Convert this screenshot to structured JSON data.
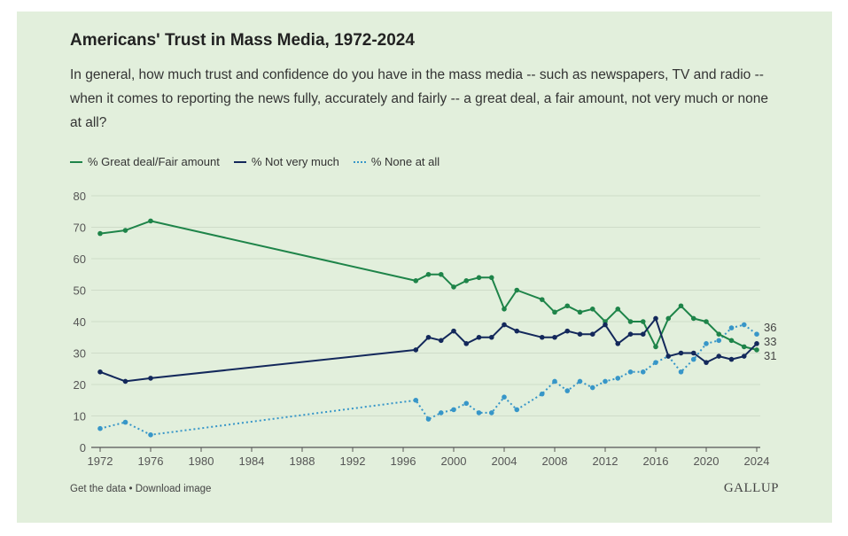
{
  "colors": {
    "great_fair": "#1e8449",
    "not_very": "#13285b",
    "none": "#3796c8",
    "grid": "#cfdcc9",
    "axis": "#555555"
  },
  "header": {
    "title": "Americans' Trust in Mass Media, 1972-2024",
    "question": "In general, how much trust and confidence do you have in the mass media -- such as newspapers, TV and radio -- when it comes to reporting the news fully, accurately and fairly -- a great deal, a fair amount, not very much or none at all?"
  },
  "footer": {
    "get_data": "Get the data",
    "separator": "•",
    "download": "Download image",
    "brand": "GALLUP"
  },
  "chart_data": {
    "type": "line",
    "title": "Americans' Trust in Mass Media, 1972-2024",
    "xlabel": "",
    "ylabel": "",
    "xlim": [
      1972,
      2024
    ],
    "ylim": [
      0,
      80
    ],
    "x_ticks": [
      1972,
      1976,
      1980,
      1984,
      1988,
      1992,
      1996,
      2000,
      2004,
      2008,
      2012,
      2016,
      2020,
      2024
    ],
    "y_ticks": [
      0,
      10,
      20,
      30,
      40,
      50,
      60,
      70,
      80
    ],
    "grid": true,
    "legend_position": "top-left",
    "series": [
      {
        "name": "% Great deal/Fair amount",
        "style": "solid",
        "end_label": "31",
        "x": [
          1972,
          1974,
          1976,
          1997,
          1998,
          1999,
          2000,
          2001,
          2002,
          2003,
          2004,
          2005,
          2007,
          2008,
          2009,
          2010,
          2011,
          2012,
          2013,
          2014,
          2015,
          2016,
          2017,
          2018,
          2019,
          2020,
          2021,
          2022,
          2023,
          2024
        ],
        "values": [
          68,
          69,
          72,
          53,
          55,
          55,
          51,
          53,
          54,
          54,
          44,
          50,
          47,
          43,
          45,
          43,
          44,
          40,
          44,
          40,
          40,
          32,
          41,
          45,
          41,
          40,
          36,
          34,
          32,
          31
        ]
      },
      {
        "name": "% Not very much",
        "style": "solid",
        "end_label": "33",
        "x": [
          1972,
          1974,
          1976,
          1997,
          1998,
          1999,
          2000,
          2001,
          2002,
          2003,
          2004,
          2005,
          2007,
          2008,
          2009,
          2010,
          2011,
          2012,
          2013,
          2014,
          2015,
          2016,
          2017,
          2018,
          2019,
          2020,
          2021,
          2022,
          2023,
          2024
        ],
        "values": [
          24,
          21,
          22,
          31,
          35,
          34,
          37,
          33,
          35,
          35,
          39,
          37,
          35,
          35,
          37,
          36,
          36,
          39,
          33,
          36,
          36,
          41,
          29,
          30,
          30,
          27,
          29,
          28,
          29,
          33
        ]
      },
      {
        "name": "% None at all",
        "style": "dotted",
        "end_label": "36",
        "x": [
          1972,
          1974,
          1976,
          1997,
          1998,
          1999,
          2000,
          2001,
          2002,
          2003,
          2004,
          2005,
          2007,
          2008,
          2009,
          2010,
          2011,
          2012,
          2013,
          2014,
          2015,
          2016,
          2017,
          2018,
          2019,
          2020,
          2021,
          2022,
          2023,
          2024
        ],
        "values": [
          6,
          8,
          4,
          15,
          9,
          11,
          12,
          14,
          11,
          11,
          16,
          12,
          17,
          21,
          18,
          21,
          19,
          21,
          22,
          24,
          24,
          27,
          29,
          24,
          28,
          33,
          34,
          38,
          39,
          36
        ]
      }
    ]
  }
}
